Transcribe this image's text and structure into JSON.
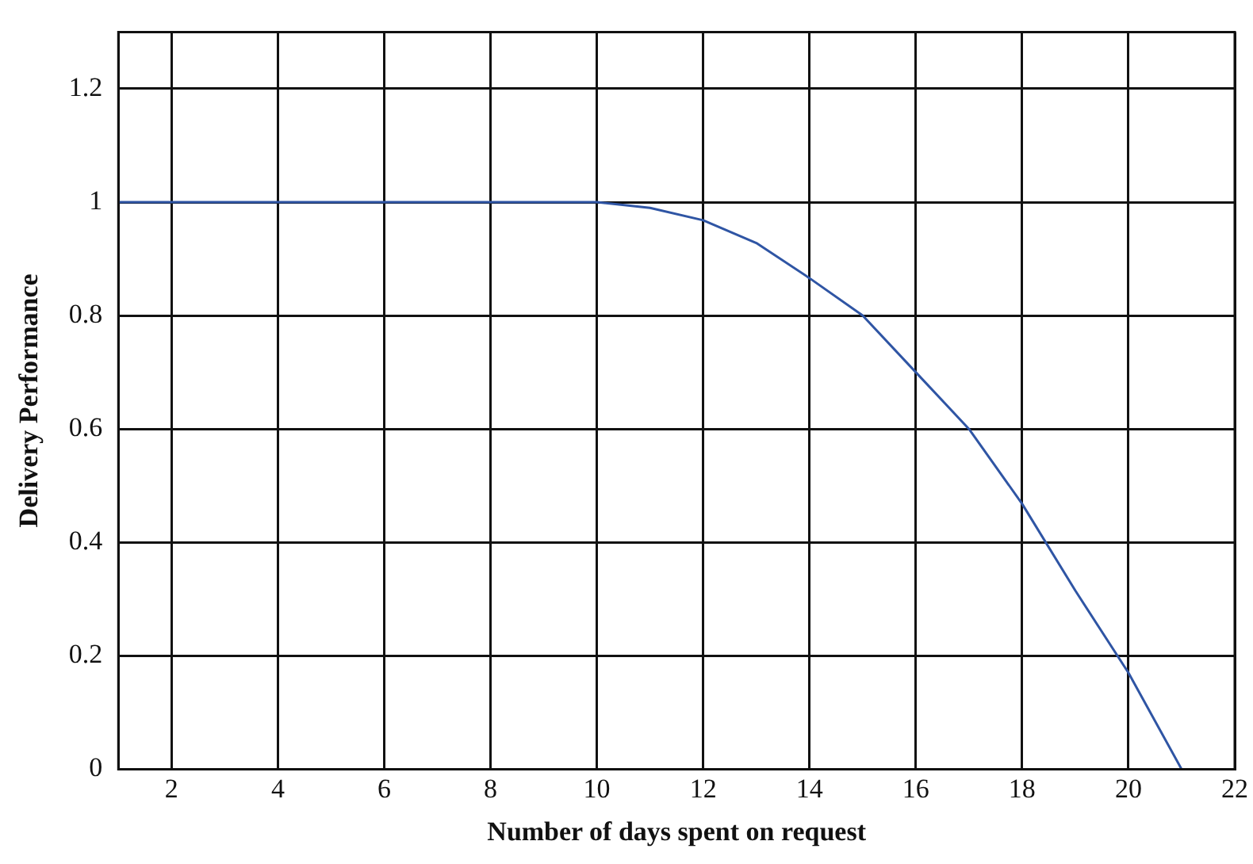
{
  "chart_data": {
    "type": "line",
    "xlabel": "Number of days spent on request",
    "ylabel": "Delivery Performance",
    "x": [
      1,
      2,
      3,
      4,
      5,
      6,
      7,
      8,
      9,
      10,
      11,
      12,
      13,
      14,
      15,
      16,
      17,
      18,
      19,
      20,
      21
    ],
    "series": [
      {
        "color": "#2f55a4",
        "values": [
          1,
          1,
          1,
          1,
          1,
          1,
          1,
          1,
          1,
          1,
          0.99,
          0.968,
          0.928,
          0.866,
          0.8,
          0.7,
          0.6,
          0.468,
          0.315,
          0.17,
          0
        ]
      }
    ],
    "xlim": [
      1,
      22
    ],
    "xticks": [
      2,
      4,
      6,
      8,
      10,
      12,
      14,
      16,
      18,
      20,
      22
    ],
    "ylim": [
      0,
      1.3
    ],
    "yticks": [
      0,
      0.2,
      0.4,
      0.6,
      0.8,
      1,
      1.2
    ],
    "grid": true,
    "legend": false,
    "marker": "none",
    "line_style": "solid"
  }
}
